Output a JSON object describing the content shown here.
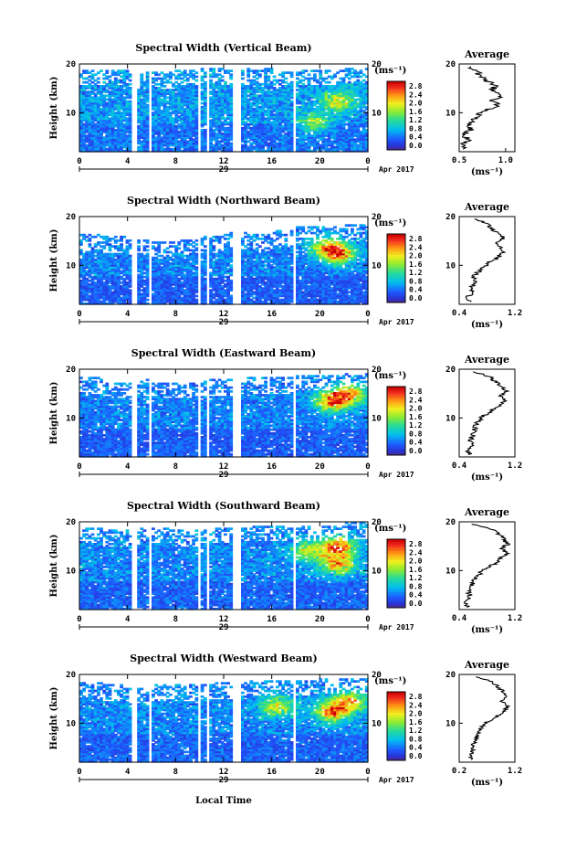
{
  "figure": {
    "xlabel": "Local Time",
    "date_label": "Apr 2017",
    "day_label": "29"
  },
  "chart_data": [
    {
      "type": "heatmap",
      "title": "Spectral Width (Vertical Beam)",
      "ylabel": "Height (km)",
      "ylim": [
        2,
        20
      ],
      "yticks": [
        {
          "v": 10,
          "t": "10"
        },
        {
          "v": 20,
          "t": "20"
        }
      ],
      "xlim": [
        0,
        24
      ],
      "xticks": [
        {
          "v": 0,
          "t": "0"
        },
        {
          "v": 4,
          "t": "4"
        },
        {
          "v": 8,
          "t": "8"
        },
        {
          "v": 12,
          "t": "12"
        },
        {
          "v": 16,
          "t": "16"
        },
        {
          "v": 20,
          "t": "20"
        },
        {
          "v": 24,
          "t": "0"
        }
      ],
      "gaps": [
        [
          4.3,
          4.8
        ],
        [
          5.7,
          6.1
        ],
        [
          9.8,
          10.2
        ],
        [
          10.6,
          10.9
        ],
        [
          12.6,
          13.4
        ],
        [
          17.8,
          18.1
        ]
      ],
      "top": [
        18.5,
        18.5,
        18.0,
        18.0,
        18.5,
        19.0,
        18.5,
        19.0,
        18.0,
        18.5,
        18.5,
        19.0,
        19.0
      ],
      "base_level": 0.85,
      "hot_spots": [
        [
          21.5,
          12.5,
          1.5
        ],
        [
          19.5,
          8.0,
          1.2
        ]
      ],
      "colorbar": {
        "unit": "(ms⁻¹)",
        "ticks": [
          "2.8",
          "2.4",
          "2.0",
          "1.6",
          "1.2",
          "0.8",
          "0.4",
          "0.0"
        ],
        "range": [
          0,
          3
        ]
      },
      "profile": {
        "title": "Average",
        "xlabel": "(ms⁻¹)",
        "xlim": [
          0.5,
          1.1
        ],
        "xticks": [
          {
            "v": 0.5,
            "t": "0.5"
          },
          {
            "v": 1.0,
            "t": "1.0"
          }
        ],
        "ylim": [
          2,
          20
        ],
        "yticks": [
          {
            "v": 10,
            "t": "10"
          },
          {
            "v": 20,
            "t": "20"
          }
        ],
        "heights": [
          2.5,
          3.5,
          4.5,
          5.5,
          6.5,
          7.5,
          8.5,
          9.5,
          10.5,
          11.5,
          12.5,
          13.5,
          14.5,
          15.5,
          16.5,
          17.5,
          18.5,
          19.5
        ],
        "values": [
          0.58,
          0.54,
          0.6,
          0.55,
          0.62,
          0.6,
          0.64,
          0.7,
          0.78,
          0.92,
          0.86,
          0.95,
          0.84,
          0.9,
          0.8,
          0.74,
          0.68,
          0.62
        ]
      }
    },
    {
      "type": "heatmap",
      "title": "Spectral Width (Northward Beam)",
      "ylabel": "Height (km)",
      "ylim": [
        2,
        20
      ],
      "yticks": [
        {
          "v": 10,
          "t": "10"
        },
        {
          "v": 20,
          "t": "20"
        }
      ],
      "xlim": [
        0,
        24
      ],
      "xticks": [
        {
          "v": 0,
          "t": "0"
        },
        {
          "v": 4,
          "t": "4"
        },
        {
          "v": 8,
          "t": "8"
        },
        {
          "v": 12,
          "t": "12"
        },
        {
          "v": 16,
          "t": "16"
        },
        {
          "v": 20,
          "t": "20"
        },
        {
          "v": 24,
          "t": "0"
        }
      ],
      "gaps": [
        [
          4.3,
          4.8
        ],
        [
          5.7,
          6.1
        ],
        [
          9.8,
          10.2
        ],
        [
          10.6,
          10.9
        ],
        [
          12.6,
          13.4
        ],
        [
          17.8,
          18.1
        ]
      ],
      "top": [
        16.0,
        15.5,
        15.0,
        14.5,
        15.0,
        15.5,
        16.5,
        16.0,
        17.0,
        17.5,
        17.5,
        18.0,
        18.0
      ],
      "base_level": 0.7,
      "hot_spots": [
        [
          21.5,
          12.5,
          2.1
        ],
        [
          20.5,
          14.0,
          1.4
        ]
      ],
      "colorbar": {
        "unit": "(ms⁻¹)",
        "ticks": [
          "2.8",
          "2.4",
          "2.0",
          "1.6",
          "1.2",
          "0.8",
          "0.4",
          "0.0"
        ],
        "range": [
          0,
          3
        ]
      },
      "profile": {
        "title": "Average",
        "xlabel": "(ms⁻¹)",
        "xlim": [
          0.4,
          1.2
        ],
        "xticks": [
          {
            "v": 0.4,
            "t": "0.4"
          },
          {
            "v": 1.2,
            "t": "1.2"
          }
        ],
        "ylim": [
          2,
          20
        ],
        "yticks": [
          {
            "v": 10,
            "t": "10"
          },
          {
            "v": 20,
            "t": "20"
          }
        ],
        "heights": [
          2.5,
          3.5,
          4.5,
          5.5,
          6.5,
          7.5,
          8.5,
          9.5,
          10.5,
          11.5,
          12.5,
          13.5,
          14.5,
          15.5,
          16.5,
          17.5,
          18.5,
          19.5
        ],
        "values": [
          0.55,
          0.52,
          0.6,
          0.56,
          0.62,
          0.6,
          0.66,
          0.74,
          0.82,
          0.95,
          1.02,
          1.0,
          0.92,
          1.04,
          0.96,
          0.86,
          0.8,
          0.62
        ]
      }
    },
    {
      "type": "heatmap",
      "title": "Spectral Width (Eastward Beam)",
      "ylabel": "Height (km)",
      "ylim": [
        2,
        20
      ],
      "yticks": [
        {
          "v": 10,
          "t": "10"
        },
        {
          "v": 20,
          "t": "20"
        }
      ],
      "xlim": [
        0,
        24
      ],
      "xticks": [
        {
          "v": 0,
          "t": "0"
        },
        {
          "v": 4,
          "t": "4"
        },
        {
          "v": 8,
          "t": "8"
        },
        {
          "v": 12,
          "t": "12"
        },
        {
          "v": 16,
          "t": "16"
        },
        {
          "v": 20,
          "t": "20"
        },
        {
          "v": 24,
          "t": "0"
        }
      ],
      "gaps": [
        [
          4.3,
          4.8
        ],
        [
          5.7,
          6.1
        ],
        [
          9.8,
          10.2
        ],
        [
          10.6,
          10.9
        ],
        [
          12.6,
          13.4
        ],
        [
          17.8,
          18.1
        ]
      ],
      "top": [
        18.0,
        17.0,
        17.5,
        17.0,
        17.0,
        17.5,
        17.5,
        18.0,
        18.0,
        18.5,
        18.5,
        19.0,
        19.0
      ],
      "base_level": 0.7,
      "hot_spots": [
        [
          21.0,
          13.5,
          2.2
        ],
        [
          22.5,
          15.0,
          1.8
        ]
      ],
      "colorbar": {
        "unit": "(ms⁻¹)",
        "ticks": [
          "2.8",
          "2.4",
          "2.0",
          "1.6",
          "1.2",
          "0.8",
          "0.4",
          "0.0"
        ],
        "range": [
          0,
          3
        ]
      },
      "profile": {
        "title": "Average",
        "xlabel": "(ms⁻¹)",
        "xlim": [
          0.4,
          1.2
        ],
        "xticks": [
          {
            "v": 0.4,
            "t": "0.4"
          },
          {
            "v": 1.2,
            "t": "1.2"
          }
        ],
        "ylim": [
          2,
          20
        ],
        "yticks": [
          {
            "v": 10,
            "t": "10"
          },
          {
            "v": 20,
            "t": "20"
          }
        ],
        "heights": [
          2.5,
          3.5,
          4.5,
          5.5,
          6.5,
          7.5,
          8.5,
          9.5,
          10.5,
          11.5,
          12.5,
          13.5,
          14.5,
          15.5,
          16.5,
          17.5,
          18.5,
          19.5
        ],
        "values": [
          0.55,
          0.52,
          0.58,
          0.56,
          0.6,
          0.62,
          0.64,
          0.68,
          0.76,
          0.86,
          0.98,
          1.06,
          1.0,
          1.08,
          1.02,
          0.92,
          0.84,
          0.6
        ]
      }
    },
    {
      "type": "heatmap",
      "title": "Spectral Width (Southward Beam)",
      "ylabel": "Height (km)",
      "ylim": [
        2,
        20
      ],
      "yticks": [
        {
          "v": 10,
          "t": "10"
        },
        {
          "v": 20,
          "t": "20"
        }
      ],
      "xlim": [
        0,
        24
      ],
      "xticks": [
        {
          "v": 0,
          "t": "0"
        },
        {
          "v": 4,
          "t": "4"
        },
        {
          "v": 8,
          "t": "8"
        },
        {
          "v": 12,
          "t": "12"
        },
        {
          "v": 16,
          "t": "16"
        },
        {
          "v": 20,
          "t": "20"
        },
        {
          "v": 24,
          "t": "0"
        }
      ],
      "gaps": [
        [
          4.3,
          4.8
        ],
        [
          5.7,
          6.1
        ],
        [
          9.8,
          10.2
        ],
        [
          10.6,
          10.9
        ],
        [
          12.6,
          13.4
        ],
        [
          17.8,
          18.1
        ]
      ],
      "top": [
        18.5,
        18.0,
        18.5,
        18.5,
        18.0,
        18.5,
        18.5,
        19.0,
        19.0,
        19.0,
        19.0,
        19.5,
        19.5
      ],
      "base_level": 0.75,
      "hot_spots": [
        [
          21.5,
          15.0,
          2.2
        ],
        [
          21.5,
          11.5,
          2.0
        ],
        [
          19.0,
          14.0,
          1.4
        ]
      ],
      "colorbar": {
        "unit": "(ms⁻¹)",
        "ticks": [
          "2.8",
          "2.4",
          "2.0",
          "1.6",
          "1.2",
          "0.8",
          "0.4",
          "0.0"
        ],
        "range": [
          0,
          3
        ]
      },
      "profile": {
        "title": "Average",
        "xlabel": "(ms⁻¹)",
        "xlim": [
          0.4,
          1.2
        ],
        "xticks": [
          {
            "v": 0.4,
            "t": "0.4"
          },
          {
            "v": 1.2,
            "t": "1.2"
          }
        ],
        "ylim": [
          2,
          20
        ],
        "yticks": [
          {
            "v": 10,
            "t": "10"
          },
          {
            "v": 20,
            "t": "20"
          }
        ],
        "heights": [
          2.5,
          3.5,
          4.5,
          5.5,
          6.5,
          7.5,
          8.5,
          9.5,
          10.5,
          11.5,
          12.5,
          13.5,
          14.5,
          15.5,
          16.5,
          17.5,
          18.5,
          19.5
        ],
        "values": [
          0.52,
          0.5,
          0.56,
          0.54,
          0.58,
          0.6,
          0.64,
          0.7,
          0.8,
          0.92,
          1.0,
          1.08,
          1.02,
          1.1,
          1.04,
          0.96,
          0.86,
          0.58
        ]
      }
    },
    {
      "type": "heatmap",
      "title": "Spectral Width (Westward Beam)",
      "ylabel": "Height (km)",
      "ylim": [
        2,
        20
      ],
      "yticks": [
        {
          "v": 10,
          "t": "10"
        },
        {
          "v": 20,
          "t": "20"
        }
      ],
      "xlim": [
        0,
        24
      ],
      "xticks": [
        {
          "v": 0,
          "t": "0"
        },
        {
          "v": 4,
          "t": "4"
        },
        {
          "v": 8,
          "t": "8"
        },
        {
          "v": 12,
          "t": "12"
        },
        {
          "v": 16,
          "t": "16"
        },
        {
          "v": 20,
          "t": "20"
        },
        {
          "v": 24,
          "t": "0"
        }
      ],
      "gaps": [
        [
          4.3,
          4.8
        ],
        [
          5.7,
          6.1
        ],
        [
          9.8,
          10.2
        ],
        [
          10.6,
          10.9
        ],
        [
          12.6,
          13.4
        ],
        [
          17.8,
          18.1
        ]
      ],
      "top": [
        18.0,
        17.5,
        17.0,
        17.5,
        17.5,
        18.0,
        18.0,
        18.5,
        18.5,
        18.5,
        19.0,
        19.0,
        19.0
      ],
      "base_level": 0.75,
      "hot_spots": [
        [
          21.0,
          12.5,
          2.2
        ],
        [
          16.5,
          13.5,
          1.6
        ],
        [
          22.5,
          14.5,
          1.8
        ]
      ],
      "colorbar": {
        "unit": "(ms⁻¹)",
        "ticks": [
          "2.8",
          "2.4",
          "2.0",
          "1.6",
          "1.2",
          "0.8",
          "0.4",
          "0.0"
        ],
        "range": [
          0,
          3
        ]
      },
      "profile": {
        "title": "Average",
        "xlabel": "(ms⁻¹)",
        "xlim": [
          0.2,
          1.2
        ],
        "xticks": [
          {
            "v": 0.2,
            "t": "0.2"
          },
          {
            "v": 1.2,
            "t": "1.2"
          }
        ],
        "ylim": [
          2,
          20
        ],
        "yticks": [
          {
            "v": 10,
            "t": "10"
          },
          {
            "v": 20,
            "t": "20"
          }
        ],
        "heights": [
          2.5,
          3.5,
          4.5,
          5.5,
          6.5,
          7.5,
          8.5,
          9.5,
          10.5,
          11.5,
          12.5,
          13.5,
          14.5,
          15.5,
          16.5,
          17.5,
          18.5,
          19.5
        ],
        "values": [
          0.42,
          0.4,
          0.46,
          0.44,
          0.5,
          0.52,
          0.56,
          0.62,
          0.74,
          0.9,
          1.0,
          1.08,
          0.96,
          1.04,
          0.98,
          0.9,
          0.8,
          0.5
        ]
      }
    }
  ]
}
